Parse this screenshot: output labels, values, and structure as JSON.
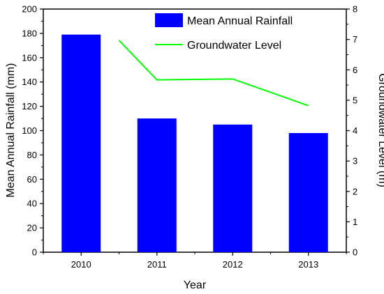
{
  "chart_data": {
    "type": "bar+line",
    "categories": [
      "2010",
      "2011",
      "2012",
      "2013"
    ],
    "xlabel": "Year",
    "series": [
      {
        "name": "Mean Annual Rainfall",
        "type": "bar",
        "axis": "left",
        "values": [
          179,
          110,
          105,
          98
        ],
        "color": "#0000ff"
      },
      {
        "name": "Groundwater Level",
        "type": "line",
        "axis": "right",
        "x": [
          1.5,
          2,
          3,
          4
        ],
        "values": [
          6.97,
          5.67,
          5.7,
          4.82
        ],
        "color": "#00ff00"
      }
    ],
    "y_left": {
      "label": "Mean Annual Rainfall (mm)",
      "ylim": [
        0,
        200
      ],
      "ticks": [
        "0",
        "20",
        "40",
        "60",
        "80",
        "100",
        "120",
        "140",
        "160",
        "180",
        "200"
      ]
    },
    "y_right": {
      "label": "Groundwater Level (m)",
      "ylim": [
        0,
        8
      ],
      "ticks": [
        "0",
        "1",
        "2",
        "3",
        "4",
        "5",
        "6",
        "7",
        "8"
      ]
    },
    "x_ticks": [
      "2010",
      "2011",
      "2012",
      "2013"
    ],
    "grid": false,
    "legend_position": "top-right"
  }
}
